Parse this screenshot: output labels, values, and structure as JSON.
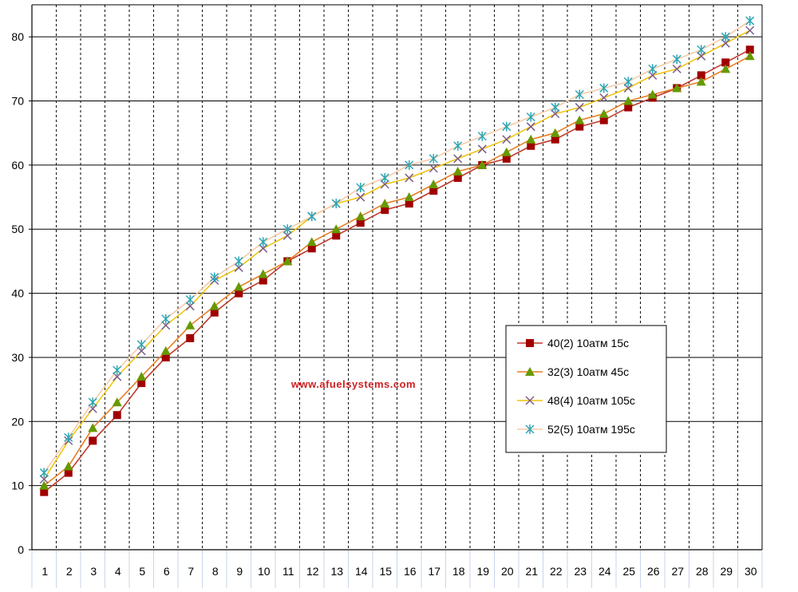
{
  "watermark": "www.afuelsystems.com",
  "chart_data": {
    "type": "line",
    "title": "",
    "xlabel": "",
    "ylabel": "",
    "x": [
      1,
      2,
      3,
      4,
      5,
      6,
      7,
      8,
      9,
      10,
      11,
      12,
      13,
      14,
      15,
      16,
      17,
      18,
      19,
      20,
      21,
      22,
      23,
      24,
      25,
      26,
      27,
      28,
      29,
      30
    ],
    "x_tick_labels": [
      "1",
      "2",
      "3",
      "4",
      "5",
      "6",
      "7",
      "8",
      "9",
      "10",
      "11",
      "12",
      "13",
      "14",
      "15",
      "16",
      "17",
      "18",
      "19",
      "20",
      "21",
      "22",
      "23",
      "24",
      "25",
      "26",
      "27",
      "28",
      "29",
      "30"
    ],
    "ylim": [
      0,
      85
    ],
    "y_ticks": [
      0,
      10,
      20,
      30,
      40,
      50,
      60,
      70,
      80
    ],
    "y_tick_labels": [
      "0",
      "10",
      "20",
      "30",
      "40",
      "50",
      "60",
      "70",
      "80"
    ],
    "grid": {
      "horizontal": true,
      "vertical": "dashed"
    },
    "legend_position": "right-center",
    "series": [
      {
        "name": "40(2) 10атм 15с",
        "color": "#c0392b",
        "marker_color": "#a00000",
        "marker": "square",
        "values": [
          9,
          12,
          17,
          21,
          26,
          30,
          33,
          37,
          40,
          42,
          45,
          47,
          49,
          51,
          53,
          54,
          56,
          58,
          60,
          61,
          63,
          64,
          66,
          67,
          69,
          70.5,
          72,
          74,
          76,
          78
        ]
      },
      {
        "name": "32(3) 10атм 45с",
        "color": "#e67e22",
        "marker_color": "#669900",
        "marker": "triangle",
        "values": [
          10,
          13,
          19,
          23,
          27,
          31,
          35,
          38,
          41,
          43,
          45,
          48,
          50,
          52,
          54,
          55,
          57,
          59,
          60,
          62,
          64,
          65,
          67,
          68,
          70,
          71,
          72,
          73,
          75,
          77
        ]
      },
      {
        "name": "48(4) 10атм 105с",
        "color": "#f1c40f",
        "marker_color": "#7a5c8a",
        "marker": "x",
        "values": [
          11,
          17,
          22,
          27,
          31,
          35,
          38,
          42,
          44,
          47,
          49,
          52,
          54,
          55,
          57,
          58,
          59.5,
          61,
          62.5,
          64,
          66,
          68,
          69,
          70.5,
          72,
          74,
          75,
          77,
          79,
          81
        ]
      },
      {
        "name": "52(5) 10атм 195с",
        "color": "#f5cba7",
        "marker_color": "#2ca6b5",
        "marker": "star",
        "values": [
          12,
          17.5,
          23,
          28,
          32,
          36,
          39,
          42.5,
          45,
          48,
          50,
          52,
          54,
          56.5,
          58,
          60,
          61,
          63,
          64.5,
          66,
          67.5,
          69,
          71,
          72,
          73,
          75,
          76.5,
          78,
          80,
          82.5
        ]
      }
    ]
  }
}
